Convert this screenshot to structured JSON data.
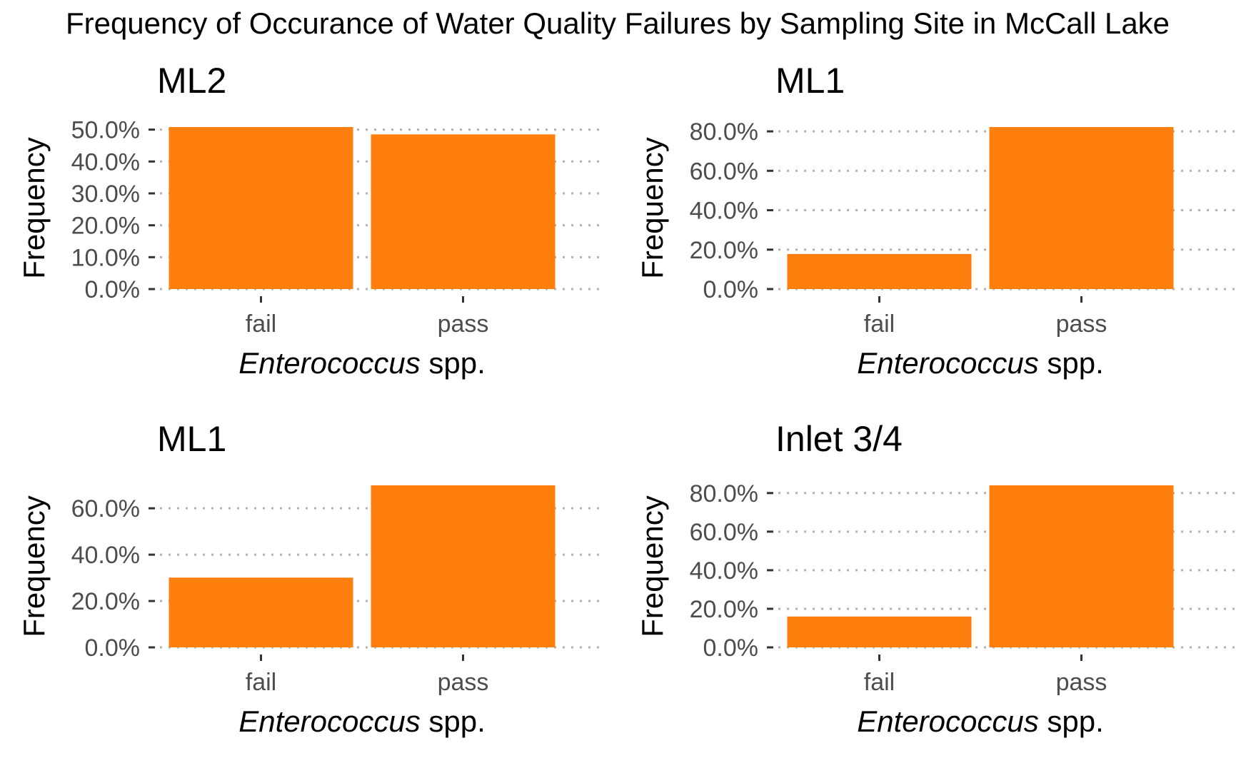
{
  "figure_title": "Frequency of Occurance of Water Quality Failures by Sampling Site in McCall Lake",
  "colors": {
    "bar": "#FF7F0E",
    "grid": "#B3B3B3",
    "tick_text": "#4D4D4D",
    "text": "#000000"
  },
  "chart_data": [
    {
      "type": "bar",
      "title": "ML2",
      "categories": [
        "fail",
        "pass"
      ],
      "values": [
        50.8,
        48.5
      ],
      "ylim": [
        0,
        50.8
      ],
      "yticks": [
        0,
        10,
        20,
        30,
        40,
        50
      ],
      "ytick_labels": [
        "0.0%",
        "10.0%",
        "20.0%",
        "30.0%",
        "40.0%",
        "50.0%"
      ],
      "ylabel": "Frequency",
      "xlabel_italic": "Enterococcus",
      "xlabel_rest": " spp.",
      "grid": true
    },
    {
      "type": "bar",
      "title": "ML1",
      "categories": [
        "fail",
        "pass"
      ],
      "values": [
        17.8,
        82.2
      ],
      "ylim": [
        0,
        82.2
      ],
      "yticks": [
        0,
        20,
        40,
        60,
        80
      ],
      "ytick_labels": [
        "0.0%",
        "20.0%",
        "40.0%",
        "60.0%",
        "80.0%"
      ],
      "ylabel": "Frequency",
      "xlabel_italic": "Enterococcus",
      "xlabel_rest": " spp.",
      "grid": true
    },
    {
      "type": "bar",
      "title": "ML1",
      "categories": [
        "fail",
        "pass"
      ],
      "values": [
        30.1,
        69.9
      ],
      "ylim": [
        0,
        69.9
      ],
      "yticks": [
        0,
        20,
        40,
        60
      ],
      "ytick_labels": [
        "0.0%",
        "20.0%",
        "40.0%",
        "60.0%"
      ],
      "ylabel": "Frequency",
      "xlabel_italic": "Enterococcus",
      "xlabel_rest": " spp.",
      "grid": true
    },
    {
      "type": "bar",
      "title": "Inlet 3/4",
      "categories": [
        "fail",
        "pass"
      ],
      "values": [
        16.0,
        84.0
      ],
      "ylim": [
        0,
        84.0
      ],
      "yticks": [
        0,
        20,
        40,
        60,
        80
      ],
      "ytick_labels": [
        "0.0%",
        "20.0%",
        "40.0%",
        "60.0%",
        "80.0%"
      ],
      "ylabel": "Frequency",
      "xlabel_italic": "Enterococcus",
      "xlabel_rest": " spp.",
      "grid": true
    }
  ]
}
